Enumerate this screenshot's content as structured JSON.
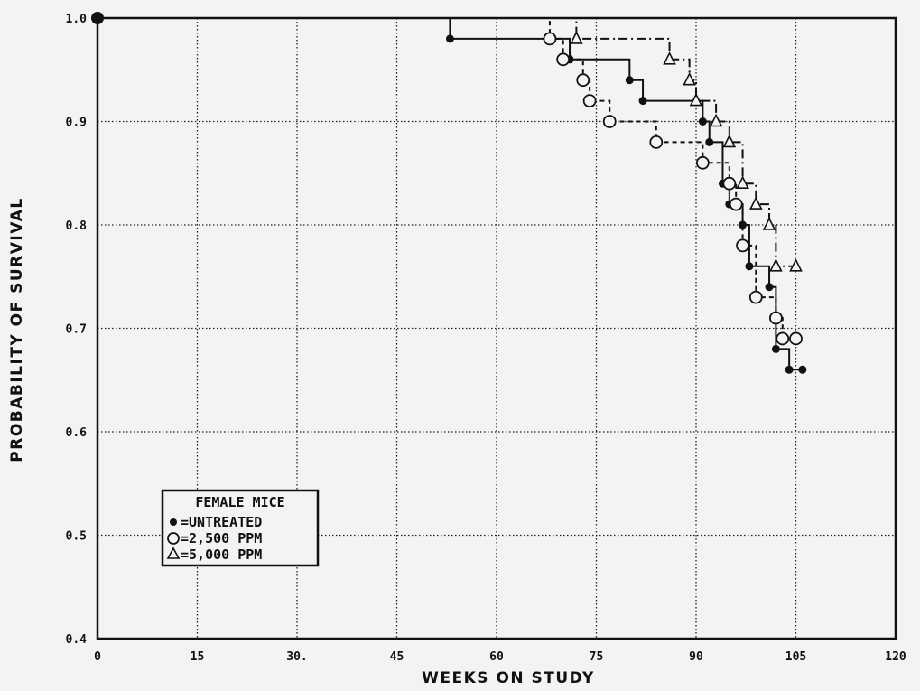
{
  "chart_data": {
    "type": "line",
    "xlabel": "WEEKS ON STUDY",
    "ylabel": "PROBABILITY OF SURVIVAL",
    "xlim": [
      0,
      120
    ],
    "ylim": [
      0.4,
      1.0
    ],
    "x_ticks": [
      0,
      15,
      30,
      45,
      60,
      75,
      90,
      105,
      120
    ],
    "x_tick_labels": [
      "0",
      "15",
      "30.",
      "45",
      "60",
      "75",
      "90",
      "105",
      "120"
    ],
    "y_ticks": [
      0.4,
      0.5,
      0.6,
      0.7,
      0.8,
      0.9,
      1.0
    ],
    "y_tick_labels": [
      "0.4",
      "0.5",
      "0.6",
      "0.7",
      "0.8",
      "0.9",
      "1.0"
    ],
    "grid": true,
    "legend": {
      "placement": "lower-left",
      "title": "FEMALE MICE",
      "entries": [
        "=UNTREATED",
        "=2,500 PPM",
        "=5,000 PPM"
      ]
    },
    "series": [
      {
        "name": "UNTREATED",
        "marker": "filled-circle",
        "line_style": "solid",
        "x": [
          0,
          53,
          71,
          80,
          82,
          91,
          92,
          94,
          95,
          97,
          98,
          101,
          102,
          104,
          106
        ],
        "y": [
          1.0,
          0.98,
          0.96,
          0.94,
          0.92,
          0.9,
          0.88,
          0.84,
          0.82,
          0.8,
          0.76,
          0.74,
          0.68,
          0.66,
          0.66
        ]
      },
      {
        "name": "2,500 PPM",
        "marker": "open-circle",
        "line_style": "dashed",
        "x": [
          0,
          68,
          70,
          73,
          74,
          77,
          84,
          91,
          95,
          96,
          97,
          99,
          102,
          103,
          105
        ],
        "y": [
          1.0,
          0.98,
          0.96,
          0.94,
          0.92,
          0.9,
          0.88,
          0.86,
          0.84,
          0.82,
          0.78,
          0.73,
          0.71,
          0.69,
          0.69
        ]
      },
      {
        "name": "5,000 PPM",
        "marker": "open-triangle",
        "line_style": "dash-dot",
        "x": [
          0,
          72,
          86,
          89,
          90,
          93,
          95,
          97,
          99,
          101,
          102,
          105
        ],
        "y": [
          1.0,
          0.98,
          0.96,
          0.94,
          0.92,
          0.9,
          0.88,
          0.84,
          0.82,
          0.8,
          0.76,
          0.76
        ]
      }
    ]
  }
}
